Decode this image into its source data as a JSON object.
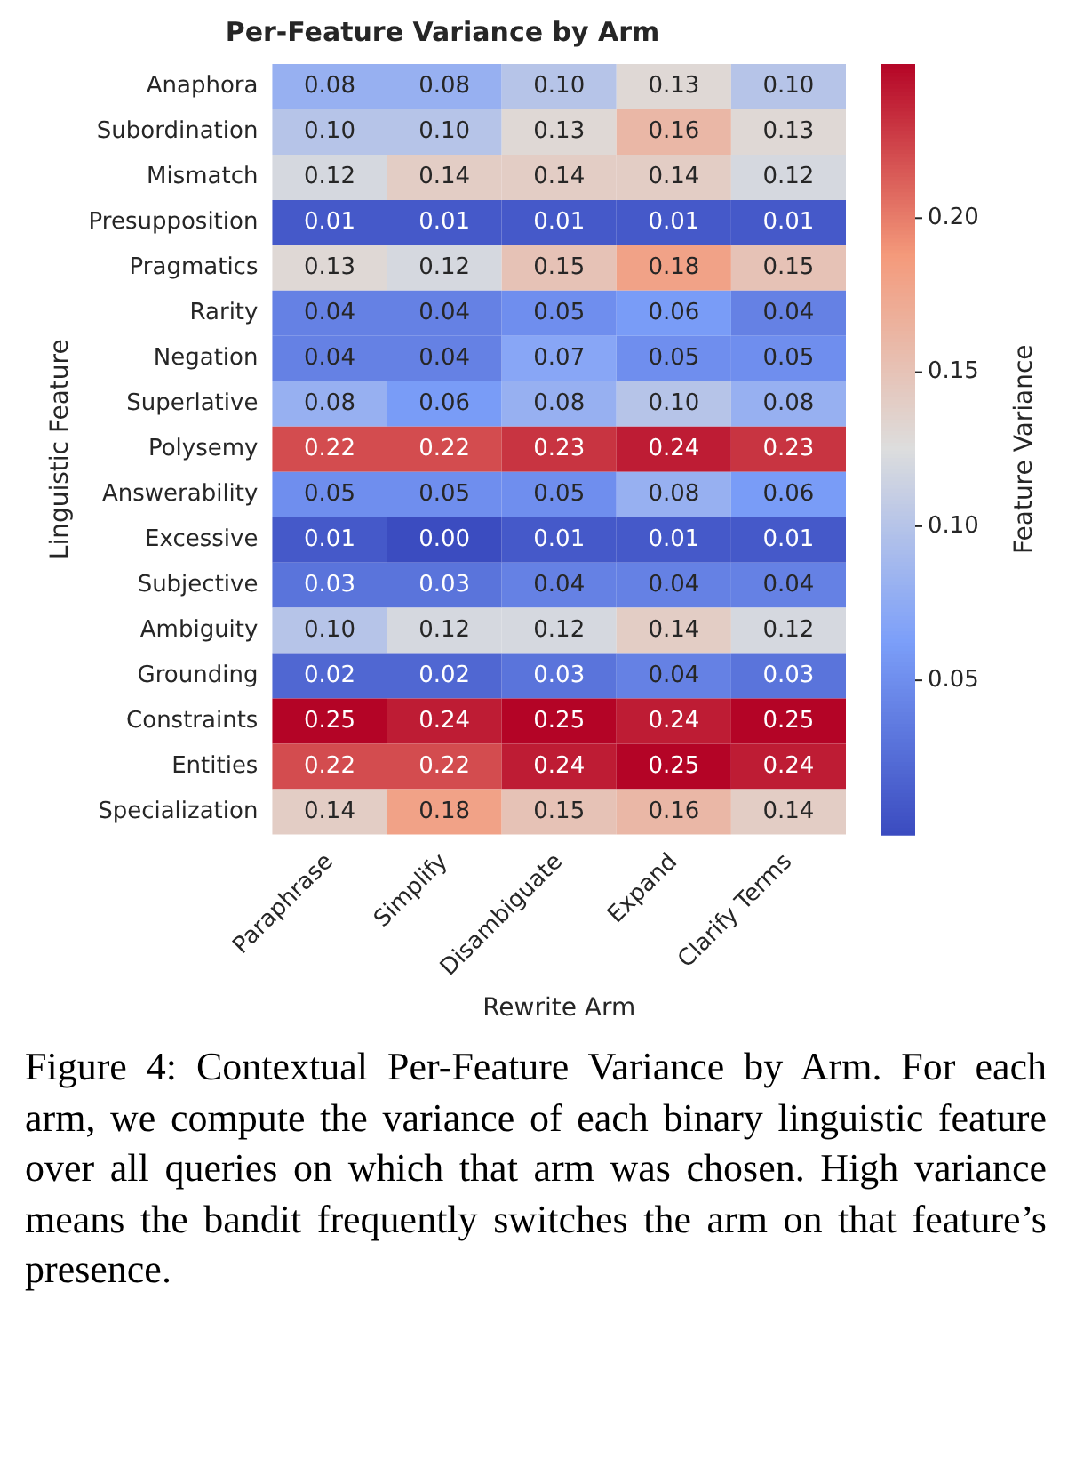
{
  "chart_data": {
    "type": "heatmap",
    "title": "Per-Feature Variance by Arm",
    "xlabel": "Rewrite Arm",
    "ylabel": "Linguistic Feature",
    "clabel": "Feature Variance",
    "categories": [
      "Paraphrase",
      "Simplify",
      "Disambiguate",
      "Expand",
      "Clarify Terms"
    ],
    "y_categories": [
      "Anaphora",
      "Subordination",
      "Mismatch",
      "Presupposition",
      "Pragmatics",
      "Rarity",
      "Negation",
      "Superlative",
      "Polysemy",
      "Answerability",
      "Excessive",
      "Subjective",
      "Ambiguity",
      "Grounding",
      "Constraints",
      "Entities",
      "Specialization"
    ],
    "cells": [
      [
        0.08,
        0.08,
        0.1,
        0.13,
        0.1
      ],
      [
        0.1,
        0.1,
        0.13,
        0.16,
        0.13
      ],
      [
        0.12,
        0.14,
        0.14,
        0.14,
        0.12
      ],
      [
        0.01,
        0.01,
        0.01,
        0.01,
        0.01
      ],
      [
        0.13,
        0.12,
        0.15,
        0.18,
        0.15
      ],
      [
        0.04,
        0.04,
        0.05,
        0.06,
        0.04
      ],
      [
        0.04,
        0.04,
        0.07,
        0.05,
        0.05
      ],
      [
        0.08,
        0.06,
        0.08,
        0.1,
        0.08
      ],
      [
        0.22,
        0.22,
        0.23,
        0.24,
        0.23
      ],
      [
        0.05,
        0.05,
        0.05,
        0.08,
        0.06
      ],
      [
        0.01,
        0.0,
        0.01,
        0.01,
        0.01
      ],
      [
        0.03,
        0.03,
        0.04,
        0.04,
        0.04
      ],
      [
        0.1,
        0.12,
        0.12,
        0.14,
        0.12
      ],
      [
        0.02,
        0.02,
        0.03,
        0.04,
        0.03
      ],
      [
        0.25,
        0.24,
        0.25,
        0.24,
        0.25
      ],
      [
        0.22,
        0.22,
        0.24,
        0.25,
        0.24
      ],
      [
        0.14,
        0.18,
        0.15,
        0.16,
        0.14
      ]
    ],
    "cell_labels": [
      [
        "0.08",
        "0.08",
        "0.10",
        "0.13",
        "0.10"
      ],
      [
        "0.10",
        "0.10",
        "0.13",
        "0.16",
        "0.13"
      ],
      [
        "0.12",
        "0.14",
        "0.14",
        "0.14",
        "0.12"
      ],
      [
        "0.01",
        "0.01",
        "0.01",
        "0.01",
        "0.01"
      ],
      [
        "0.13",
        "0.12",
        "0.15",
        "0.18",
        "0.15"
      ],
      [
        "0.04",
        "0.04",
        "0.05",
        "0.06",
        "0.04"
      ],
      [
        "0.04",
        "0.04",
        "0.07",
        "0.05",
        "0.05"
      ],
      [
        "0.08",
        "0.06",
        "0.08",
        "0.10",
        "0.08"
      ],
      [
        "0.22",
        "0.22",
        "0.23",
        "0.24",
        "0.23"
      ],
      [
        "0.05",
        "0.05",
        "0.05",
        "0.08",
        "0.06"
      ],
      [
        "0.01",
        "0.00",
        "0.01",
        "0.01",
        "0.01"
      ],
      [
        "0.03",
        "0.03",
        "0.04",
        "0.04",
        "0.04"
      ],
      [
        "0.10",
        "0.12",
        "0.12",
        "0.14",
        "0.12"
      ],
      [
        "0.02",
        "0.02",
        "0.03",
        "0.04",
        "0.03"
      ],
      [
        "0.25",
        "0.24",
        "0.25",
        "0.24",
        "0.25"
      ],
      [
        "0.22",
        "0.22",
        "0.24",
        "0.25",
        "0.24"
      ],
      [
        "0.14",
        "0.18",
        "0.15",
        "0.16",
        "0.14"
      ]
    ],
    "clim": [
      0.0,
      0.25
    ],
    "cticks": [
      0.05,
      {
        "value": 0.1,
        "label": "0.10"
      },
      0.15,
      {
        "value": 0.2,
        "label": "0.20"
      }
    ],
    "data_labels": true,
    "annotations": [
      "Figure 4: Contextual Per-Feature Variance by Arm. For each arm, we compute the variance of each binary linguistic feature over all queries on which that arm was chosen. High variance means the bandit frequently switches the arm on that feature’s presence."
    ]
  }
}
